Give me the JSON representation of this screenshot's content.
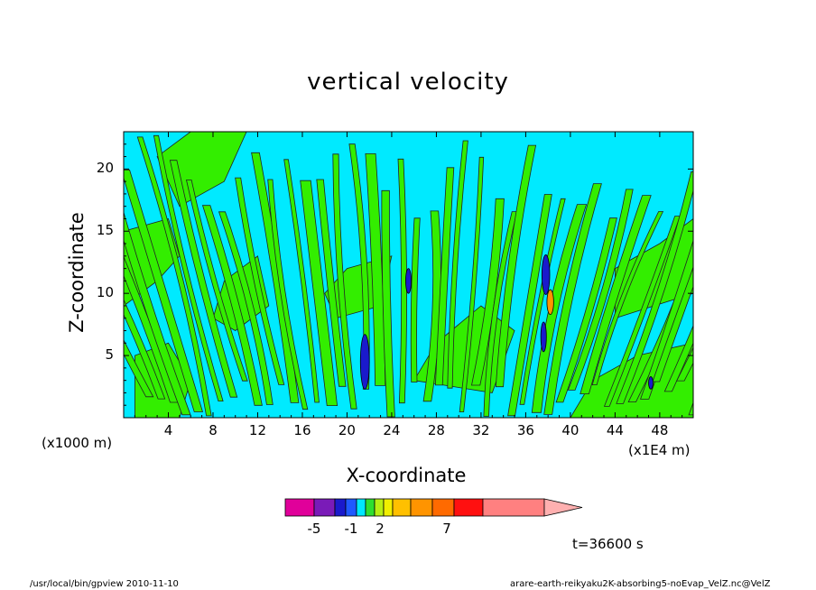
{
  "chart_data": {
    "type": "heatmap",
    "title": "vertical velocity",
    "xlabel": "X-coordinate",
    "ylabel": "Z-coordinate",
    "x_unit": "(x1E4 m)",
    "y_unit": "(x1000 m)",
    "xlim": [
      0,
      51
    ],
    "ylim": [
      0,
      23
    ],
    "x_ticks": [
      "4",
      "8",
      "12",
      "16",
      "20",
      "24",
      "28",
      "32",
      "36",
      "40",
      "44",
      "48"
    ],
    "y_ticks": [
      "5",
      "10",
      "15",
      "20"
    ],
    "colorbar": {
      "tick_labels": [
        "-5",
        "-1",
        "2",
        "7"
      ],
      "colors": [
        "#e0009a",
        "#7a1bb8",
        "#1a1acc",
        "#1f59ff",
        "#00e8ff",
        "#2fdf2f",
        "#b8ef14",
        "#f1ef00",
        "#ffc000",
        "#ff9400",
        "#ff6a00",
        "#ff1010",
        "#ff8080",
        "#ffb0b0"
      ]
    },
    "time_label": "t=36600 s"
  },
  "footer": {
    "left": "/usr/local/bin/gpview   2010-11-10",
    "right": "arare-earth-reikyaku2K-absorbing5-noEvap_VelZ.nc@VelZ"
  },
  "colors": {
    "positive": "#33ee00",
    "negative": "#00eaff",
    "strong_negative": "#1a1acc",
    "strong_positive": "#ff9400",
    "contour": "#222222"
  }
}
